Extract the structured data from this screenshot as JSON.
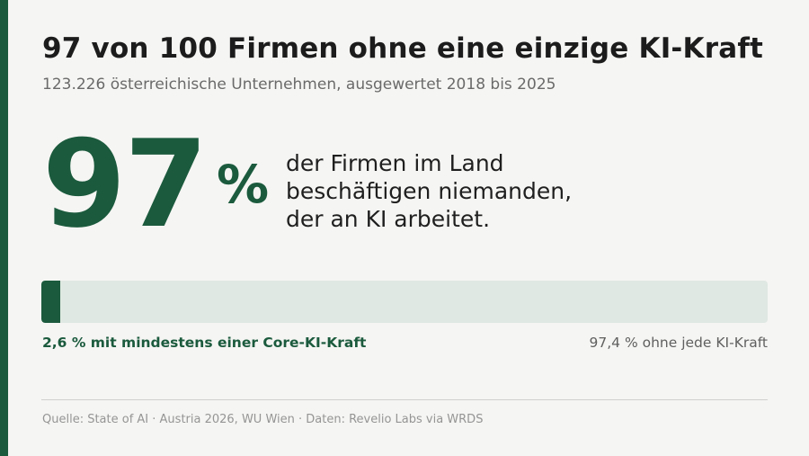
{
  "colors": {
    "accent": "#1b5a3d",
    "track": "#dfe8e2",
    "background": "#f5f5f3"
  },
  "header": {
    "title": "97 von 100 Firmen ohne eine einzige KI-Kraft",
    "subtitle": "123.226 österreichische Unternehmen, ausgewertet 2018 bis 2025"
  },
  "highlight": {
    "number": "97",
    "unit": "%",
    "statement_lines": [
      "der Firmen im Land",
      "beschäftigen niemanden,",
      "der an KI arbeitet."
    ]
  },
  "progress": {
    "value_percent": 2.6,
    "label_left": "2,6 % mit mindestens einer Core-KI-Kraft",
    "label_right": "97,4 % ohne jede KI-Kraft"
  },
  "footer": {
    "source": "Quelle: State of AI · Austria 2026, WU Wien · Daten: Revelio Labs via WRDS"
  }
}
